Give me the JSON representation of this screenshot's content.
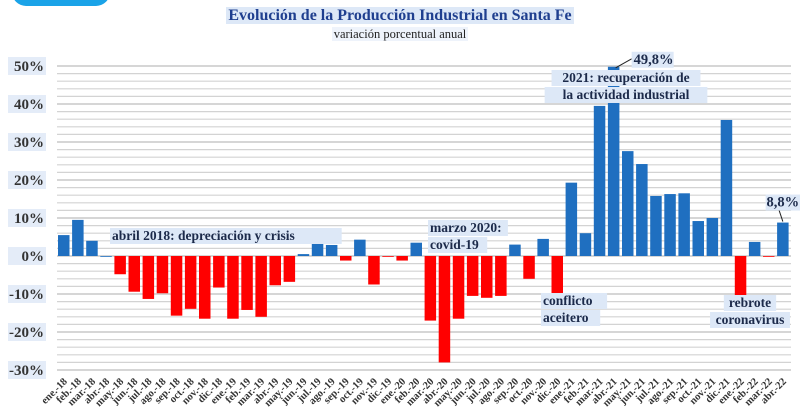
{
  "header": {
    "title": "Evolución de la Producción Industrial en Santa Fe",
    "subtitle": "variación porcentual anual"
  },
  "chart_data": {
    "type": "bar",
    "title": "Evolución de la Producción Industrial en Santa Fe",
    "subtitle": "variación porcentual anual",
    "xlabel": "",
    "ylabel": "",
    "ylim": [
      -30,
      50
    ],
    "yticks": [
      50,
      40,
      30,
      20,
      10,
      0,
      -10,
      -20,
      -30
    ],
    "ytick_labels": [
      "50%",
      "40%",
      "30%",
      "20%",
      "10%",
      "0%",
      "-10%",
      "-20%",
      "-30%"
    ],
    "minor_grid_step": 2,
    "grid": true,
    "colors": {
      "positive": "#1f6fc0",
      "negative": "#ff0000"
    },
    "categories": [
      "ene.-18",
      "feb.-18",
      "mar.-18",
      "abr.-18",
      "may.-18",
      "jun.-18",
      "jul.-18",
      "ago.-18",
      "sep.-18",
      "oct.-18",
      "nov.-18",
      "dic.-18",
      "ene.-19",
      "feb.-19",
      "mar.-19",
      "abr.-19",
      "may.-19",
      "jun.-19",
      "jul.-19",
      "ago.-19",
      "sep.-19",
      "oct.-19",
      "nov.-19",
      "dic.-19",
      "ene.-20",
      "feb.-20",
      "mar.-20",
      "abr.-20",
      "may.-20",
      "jun.-20",
      "jul.-20",
      "ago.-20",
      "sep.-20",
      "oct.-20",
      "nov.-20",
      "dic.-20",
      "ene.-21",
      "feb.-21",
      "mar.-21",
      "abr.-21",
      "may.-21",
      "jun.-21",
      "jul.-21",
      "ago.-21",
      "sep.-21",
      "oct.-21",
      "nov.-21",
      "dic.-21",
      "ene.-22",
      "feb.-22",
      "mar.-22",
      "abr.-22"
    ],
    "values": [
      5.5,
      9.5,
      4.0,
      0.0,
      -4.8,
      -9.4,
      -11.3,
      -9.8,
      -15.7,
      -13.9,
      -16.5,
      -8.3,
      -16.5,
      -14.2,
      -16.0,
      -7.7,
      -6.8,
      0.5,
      4.7,
      2.9,
      -1.2,
      4.3,
      -7.5,
      -0.2,
      -1.2,
      3.5,
      -17.0,
      -28.0,
      -16.5,
      -10.5,
      -11.0,
      -10.5,
      3.0,
      -6.0,
      4.5,
      -10.5,
      19.3,
      6.0,
      39.5,
      49.8,
      27.6,
      24.2,
      15.8,
      16.3,
      16.5,
      9.2,
      10.0,
      35.8,
      -10.7,
      3.7,
      -0.2,
      8.8
    ],
    "annotations": [
      {
        "lines": [
          "abril 2018: depreciación y crisis"
        ],
        "anchor_category": "abr.-18"
      },
      {
        "lines": [
          "marzo 2020:",
          "covid-19"
        ],
        "anchor_category": "mar.-20"
      },
      {
        "lines": [
          "conflicto",
          "aceitero"
        ],
        "anchor_category": "dic.-20"
      },
      {
        "lines": [
          "2021: recuperación de",
          "la actividad industrial"
        ],
        "anchor_category": "abr.-21"
      },
      {
        "lines": [
          "rebrote",
          "coronavirus"
        ],
        "anchor_category": "ene.-22"
      }
    ],
    "value_labels": [
      {
        "category": "abr.-21",
        "text": "49,8%"
      },
      {
        "category": "abr.-22",
        "text": "8,8%"
      }
    ]
  }
}
